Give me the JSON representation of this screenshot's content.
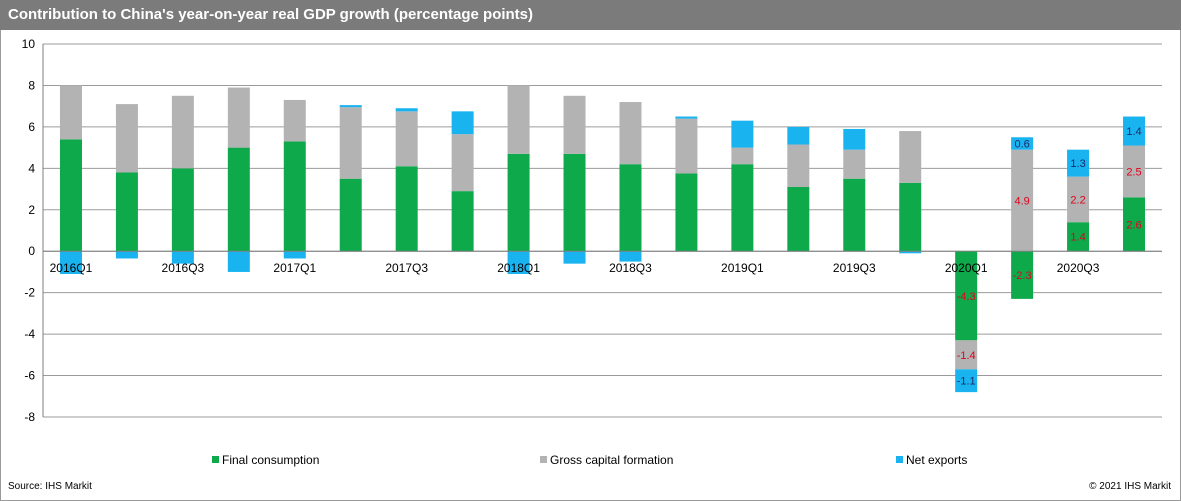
{
  "title": "Contribution to China's year-on-year real GDP growth (percentage points)",
  "source": "Source:  IHS Markit",
  "copyright": "© 2021  IHS Markit",
  "colors": {
    "final_consumption": "#0ea94b",
    "gross_capital_formation": "#b3b3b3",
    "net_exports": "#19b3f0",
    "label_red": "#e3001b",
    "label_navy": "#1f2a6b"
  },
  "chart_data": {
    "type": "bar",
    "stacked": true,
    "categories": [
      "2016Q1",
      "2016Q2",
      "2016Q3",
      "2016Q4",
      "2017Q1",
      "2017Q2",
      "2017Q3",
      "2017Q4",
      "2018Q1",
      "2018Q2",
      "2018Q3",
      "2018Q4",
      "2019Q1",
      "2019Q2",
      "2019Q3",
      "2019Q4",
      "2020Q1",
      "2020Q2",
      "2020Q3",
      "2020Q4"
    ],
    "tick_labels": [
      "2016Q1",
      "",
      "2016Q3",
      "",
      "2017Q1",
      "",
      "2017Q3",
      "",
      "2018Q1",
      "",
      "2018Q3",
      "",
      "2019Q1",
      "",
      "2019Q3",
      "",
      "2020Q1",
      "",
      "2020Q3",
      ""
    ],
    "series": [
      {
        "name": "Final consumption",
        "color": "#0ea94b",
        "values": [
          5.4,
          3.8,
          4.0,
          5.0,
          5.3,
          3.5,
          4.1,
          2.9,
          4.7,
          4.7,
          4.2,
          3.75,
          4.2,
          3.1,
          3.5,
          3.3,
          -4.3,
          -2.3,
          1.4,
          2.6
        ]
      },
      {
        "name": "Gross capital formation",
        "color": "#b3b3b3",
        "values": [
          2.6,
          3.3,
          3.5,
          2.9,
          2.0,
          3.45,
          2.65,
          2.75,
          3.3,
          2.8,
          3.0,
          2.65,
          0.8,
          2.05,
          1.4,
          2.5,
          -1.4,
          4.9,
          2.2,
          2.5
        ]
      },
      {
        "name": "Net exports",
        "color": "#19b3f0",
        "values": [
          -1.1,
          -0.35,
          -0.6,
          -1.0,
          -0.35,
          0.1,
          0.15,
          1.1,
          -1.1,
          -0.6,
          -0.5,
          0.1,
          1.3,
          0.85,
          1.0,
          -0.1,
          -1.1,
          0.6,
          1.3,
          1.4
        ]
      }
    ],
    "data_labels": [
      {
        "category": "2020Q1",
        "series": "Final consumption",
        "text": "-4.3"
      },
      {
        "category": "2020Q1",
        "series": "Gross capital formation",
        "text": "-1.4"
      },
      {
        "category": "2020Q1",
        "series": "Net exports",
        "text": "-1.1"
      },
      {
        "category": "2020Q2",
        "series": "Final consumption",
        "text": "-2.3"
      },
      {
        "category": "2020Q2",
        "series": "Gross capital formation",
        "text": "4.9"
      },
      {
        "category": "2020Q2",
        "series": "Net exports",
        "text": "0.6"
      },
      {
        "category": "2020Q3",
        "series": "Final consumption",
        "text": "1.4"
      },
      {
        "category": "2020Q3",
        "series": "Gross capital formation",
        "text": "2.2"
      },
      {
        "category": "2020Q3",
        "series": "Net exports",
        "text": "1.3"
      },
      {
        "category": "2020Q4",
        "series": "Final consumption",
        "text": "2.6"
      },
      {
        "category": "2020Q4",
        "series": "Gross capital formation",
        "text": "2.5"
      },
      {
        "category": "2020Q4",
        "series": "Net exports",
        "text": "1.4"
      }
    ],
    "ylim": [
      -8,
      10
    ],
    "yticks": [
      -8,
      -6,
      -4,
      -2,
      0,
      2,
      4,
      6,
      8,
      10
    ],
    "grid": true,
    "legend": "bottom"
  }
}
